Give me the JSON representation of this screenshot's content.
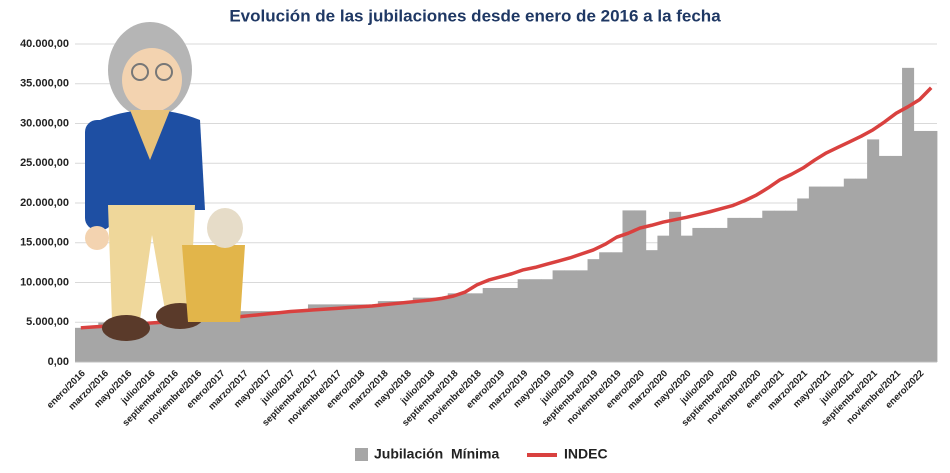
{
  "chart_data": {
    "type": "bar",
    "title": "Evolución de las jubilaciones desde enero de 2016 a la fecha",
    "categories": [
      "enero/2016",
      null,
      "marzo/2016",
      null,
      "mayo/2016",
      null,
      "julio/2016",
      null,
      "septiembre/2016",
      null,
      "noviembre/2016",
      null,
      "enero/2017",
      null,
      "marzo/2017",
      null,
      "mayo/2017",
      null,
      "julio/2017",
      null,
      "septiembre/2017",
      null,
      "noviembre/2017",
      null,
      "enero/2018",
      null,
      "marzo/2018",
      null,
      "mayo/2018",
      null,
      "julio/2018",
      null,
      "septiembre/2018",
      null,
      "noviembre/2018",
      null,
      "enero/2019",
      null,
      "marzo/2019",
      null,
      "mayo/2019",
      null,
      "julio/2019",
      null,
      "septiembre/2019",
      null,
      "noviembre/2019",
      null,
      "enero/2020",
      null,
      "marzo/2020",
      null,
      "mayo/2020",
      null,
      "julio/2020",
      null,
      "septiembre/2020",
      null,
      "noviembre/2020",
      null,
      "enero/2021",
      null,
      "marzo/2021",
      null,
      "mayo/2021",
      null,
      "julio/2021",
      null,
      "septiembre/2021",
      null,
      "noviembre/2021",
      null,
      "enero/2022",
      null
    ],
    "series": [
      {
        "name": "Jubilación  Mínima",
        "type": "bar",
        "color": "#a6a6a6",
        "values": [
          4299,
          4299,
          4959,
          4959,
          4959,
          4959,
          4959,
          4959,
          5661,
          5661,
          5661,
          5661,
          5661,
          5661,
          6394,
          6394,
          6394,
          6394,
          6394,
          6394,
          7247,
          7247,
          7247,
          7247,
          7247,
          7247,
          7660,
          7660,
          7660,
          8096,
          8096,
          8096,
          8637,
          8637,
          8637,
          9309,
          9309,
          9309,
          10410,
          10410,
          10410,
          11528,
          11528,
          11528,
          12937,
          13800,
          13800,
          19068,
          19068,
          14068,
          15892,
          18892,
          15892,
          16864,
          16864,
          16864,
          18129,
          18129,
          18129,
          19035,
          19035,
          19035,
          20571,
          22067,
          22067,
          22067,
          23064,
          23064,
          28000,
          25922,
          25922,
          37000,
          29062,
          29062
        ]
      },
      {
        "name": "INDEC",
        "type": "line",
        "color": "#d9413f",
        "values": [
          4300,
          4400,
          4500,
          4600,
          4700,
          4800,
          4900,
          5000,
          5100,
          5200,
          5300,
          5400,
          5500,
          5600,
          5750,
          5900,
          6050,
          6200,
          6350,
          6450,
          6550,
          6650,
          6750,
          6850,
          6950,
          7050,
          7200,
          7350,
          7500,
          7650,
          7800,
          8000,
          8300,
          8800,
          9700,
          10300,
          10700,
          11100,
          11600,
          11900,
          12300,
          12700,
          13100,
          13600,
          14100,
          14800,
          15700,
          16200,
          16850,
          17200,
          17600,
          17900,
          18200,
          18550,
          18900,
          19300,
          19700,
          20300,
          21000,
          21900,
          22900,
          23600,
          24400,
          25400,
          26300,
          27000,
          27700,
          28400,
          29200,
          30200,
          31300,
          32100,
          33000,
          34500
        ]
      }
    ],
    "ylim": [
      0,
      40000
    ],
    "yticks": [
      {
        "value": 0,
        "label": "0,00"
      },
      {
        "value": 5000,
        "label": "5.000,00"
      },
      {
        "value": 10000,
        "label": "10.000,00"
      },
      {
        "value": 15000,
        "label": "15.000,00"
      },
      {
        "value": 20000,
        "label": "20.000,00"
      },
      {
        "value": 25000,
        "label": "25.000,00"
      },
      {
        "value": 30000,
        "label": "30.000,00"
      },
      {
        "value": 35000,
        "label": "35.000,00"
      },
      {
        "value": 40000,
        "label": "40.000,00"
      }
    ],
    "grid": true,
    "legend": "bottom"
  }
}
